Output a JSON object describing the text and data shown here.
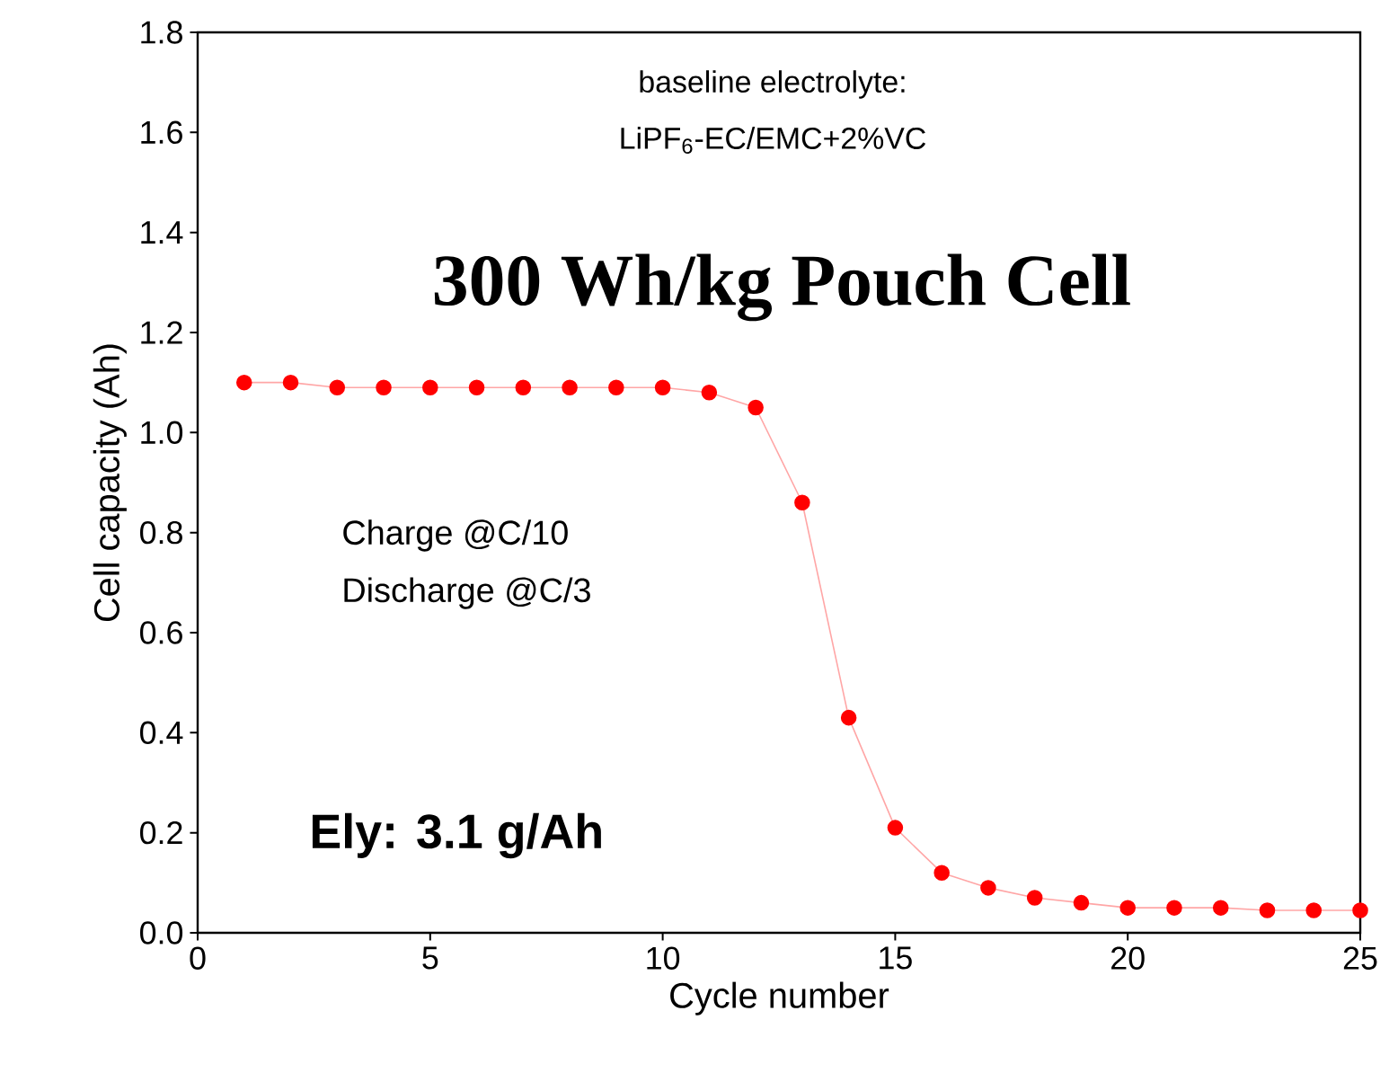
{
  "chart_data": {
    "type": "line",
    "xlabel": "Cycle number",
    "ylabel": "Cell capacity (Ah)",
    "x": [
      1,
      2,
      3,
      4,
      5,
      6,
      7,
      8,
      9,
      10,
      11,
      12,
      13,
      14,
      15,
      16,
      17,
      18,
      19,
      20,
      21,
      22,
      23,
      24,
      25
    ],
    "series": [
      {
        "color": "#ff0000",
        "values": [
          1.1,
          1.1,
          1.09,
          1.09,
          1.09,
          1.09,
          1.09,
          1.09,
          1.09,
          1.09,
          1.08,
          1.05,
          0.86,
          0.43,
          0.21,
          0.12,
          0.09,
          0.07,
          0.06,
          0.05,
          0.05,
          0.05,
          0.045,
          0.045,
          0.045
        ]
      }
    ],
    "xlim": [
      0,
      25
    ],
    "xticks": [
      0,
      5,
      10,
      15,
      20,
      25
    ],
    "ylim": [
      0,
      1.8
    ],
    "yticks": [
      {
        "value": 0,
        "label": "0.0"
      },
      {
        "value": 0.2,
        "label": "0.2"
      },
      {
        "value": 0.4,
        "label": "0.4"
      },
      {
        "value": 0.6,
        "label": "0.6"
      },
      {
        "value": 0.8,
        "label": "0.8"
      },
      {
        "value": 1.0,
        "label": "1.0"
      },
      {
        "value": 1.2,
        "label": "1.2"
      },
      {
        "value": 1.4,
        "label": "1.4"
      },
      {
        "value": 1.6,
        "label": "1.6"
      },
      {
        "value": 1.8,
        "label": "1.8"
      }
    ],
    "marker": "circle",
    "line_style": "solid",
    "annotations": [
      "baseline electrolyte:",
      "LiPF$_{6}$-EC/EMC+2%VC",
      "300 Wh/kg Pouch Cell",
      "Charge @C/10",
      "Discharge @C/3",
      "Ely: 3.1 g/Ah"
    ]
  }
}
